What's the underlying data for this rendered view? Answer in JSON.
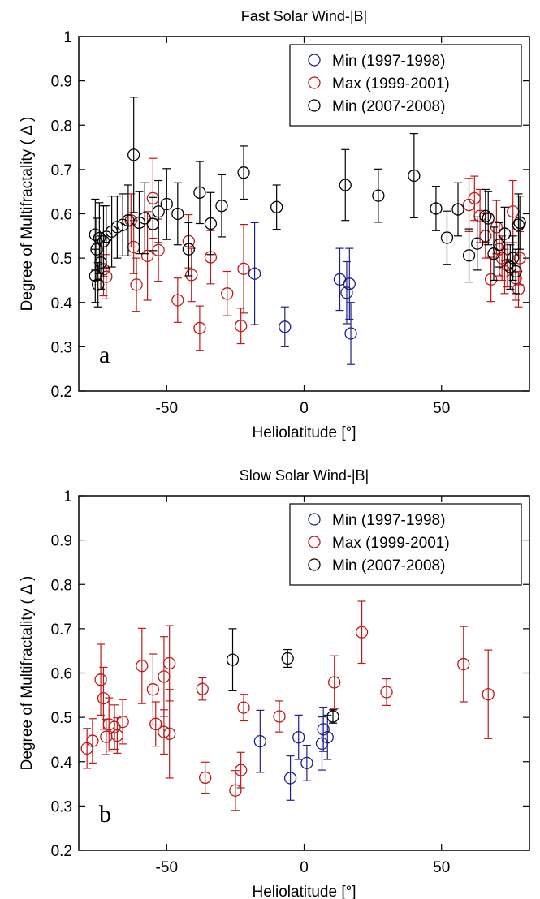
{
  "chart_data": [
    {
      "type": "scatter",
      "title": "Fast Solar Wind-|B|",
      "xlabel": "Heliolatitude [°]",
      "ylabel": "Degree of Multifractality ( Δ )",
      "panel_label": "a",
      "xlim": [
        -82,
        82
      ],
      "ylim": [
        0.2,
        1.0
      ],
      "xticks": [
        -50,
        0,
        50
      ],
      "xtick_labels": [
        "-50",
        "0",
        "50"
      ],
      "yticks": [
        0.2,
        0.3,
        0.4,
        0.5,
        0.6,
        0.7,
        0.8,
        0.9,
        1.0
      ],
      "ytick_labels": [
        "0.2",
        "0.3",
        "0.4",
        "0.5",
        "0.6",
        "0.7",
        "0.8",
        "0.9",
        "1"
      ],
      "grid": false,
      "legend_position": "top-right",
      "series": [
        {
          "name": "Min (1997-1998)",
          "color": "#1f1f8c",
          "points": [
            {
              "x": -18,
              "y": 0.465,
              "err": 0.115
            },
            {
              "x": -7,
              "y": 0.345,
              "err": 0.045
            },
            {
              "x": 13,
              "y": 0.452,
              "err": 0.07
            },
            {
              "x": 15.5,
              "y": 0.422,
              "err": 0.07
            },
            {
              "x": 16.5,
              "y": 0.442,
              "err": 0.08
            },
            {
              "x": 17,
              "y": 0.33,
              "err": 0.07
            }
          ]
        },
        {
          "name": "Max (1999-2001)",
          "color": "#c01818",
          "points": [
            {
              "x": -73,
              "y": 0.475,
              "err": 0.06
            },
            {
              "x": -72,
              "y": 0.458,
              "err": 0.05
            },
            {
              "x": -63,
              "y": 0.585,
              "err": 0.06
            },
            {
              "x": -62,
              "y": 0.525,
              "err": 0.06
            },
            {
              "x": -61,
              "y": 0.44,
              "err": 0.06
            },
            {
              "x": -57,
              "y": 0.505,
              "err": 0.1
            },
            {
              "x": -55,
              "y": 0.635,
              "err": 0.09
            },
            {
              "x": -53,
              "y": 0.518,
              "err": 0.07
            },
            {
              "x": -46,
              "y": 0.405,
              "err": 0.05
            },
            {
              "x": -42,
              "y": 0.538,
              "err": 0.06
            },
            {
              "x": -41,
              "y": 0.462,
              "err": 0.06
            },
            {
              "x": -38,
              "y": 0.342,
              "err": 0.05
            },
            {
              "x": -34,
              "y": 0.502,
              "err": 0.06
            },
            {
              "x": -28,
              "y": 0.42,
              "err": 0.05
            },
            {
              "x": -23,
              "y": 0.347,
              "err": 0.04
            },
            {
              "x": -22,
              "y": 0.476,
              "err": 0.1
            },
            {
              "x": 60,
              "y": 0.62,
              "err": 0.06
            },
            {
              "x": 62,
              "y": 0.635,
              "err": 0.05
            },
            {
              "x": 64,
              "y": 0.595,
              "err": 0.06
            },
            {
              "x": 66,
              "y": 0.55,
              "err": 0.05
            },
            {
              "x": 68,
              "y": 0.452,
              "err": 0.05
            },
            {
              "x": 70,
              "y": 0.57,
              "err": 0.06
            },
            {
              "x": 71,
              "y": 0.52,
              "err": 0.06
            },
            {
              "x": 72,
              "y": 0.5,
              "err": 0.05
            },
            {
              "x": 73,
              "y": 0.47,
              "err": 0.05
            },
            {
              "x": 74,
              "y": 0.485,
              "err": 0.05
            },
            {
              "x": 76,
              "y": 0.605,
              "err": 0.07
            },
            {
              "x": 77,
              "y": 0.455,
              "err": 0.05
            },
            {
              "x": 78,
              "y": 0.43,
              "err": 0.04
            },
            {
              "x": 78.5,
              "y": 0.5,
              "err": 0.06
            }
          ]
        },
        {
          "name": "Min (2007-2008)",
          "color": "#000000",
          "points": [
            {
              "x": -76,
              "y": 0.553,
              "err": 0.08
            },
            {
              "x": -76,
              "y": 0.46,
              "err": 0.06
            },
            {
              "x": -75.5,
              "y": 0.52,
              "err": 0.07
            },
            {
              "x": -75,
              "y": 0.44,
              "err": 0.05
            },
            {
              "x": -74.5,
              "y": 0.545,
              "err": 0.08
            },
            {
              "x": -74,
              "y": 0.49,
              "err": 0.06
            },
            {
              "x": -73,
              "y": 0.538,
              "err": 0.08
            },
            {
              "x": -72,
              "y": 0.548,
              "err": 0.07
            },
            {
              "x": -70,
              "y": 0.56,
              "err": 0.08
            },
            {
              "x": -68,
              "y": 0.57,
              "err": 0.07
            },
            {
              "x": -66,
              "y": 0.575,
              "err": 0.07
            },
            {
              "x": -64,
              "y": 0.585,
              "err": 0.08
            },
            {
              "x": -62,
              "y": 0.733,
              "err": 0.13
            },
            {
              "x": -60,
              "y": 0.58,
              "err": 0.07
            },
            {
              "x": -58,
              "y": 0.59,
              "err": 0.08
            },
            {
              "x": -55,
              "y": 0.577,
              "err": 0.06
            },
            {
              "x": -53,
              "y": 0.605,
              "err": 0.07
            },
            {
              "x": -50,
              "y": 0.622,
              "err": 0.08
            },
            {
              "x": -46,
              "y": 0.6,
              "err": 0.07
            },
            {
              "x": -42,
              "y": 0.52,
              "err": 0.06
            },
            {
              "x": -38,
              "y": 0.648,
              "err": 0.07
            },
            {
              "x": -34,
              "y": 0.578,
              "err": 0.07
            },
            {
              "x": -30,
              "y": 0.618,
              "err": 0.07
            },
            {
              "x": -22,
              "y": 0.693,
              "err": 0.06
            },
            {
              "x": -10,
              "y": 0.615,
              "err": 0.05
            },
            {
              "x": 15,
              "y": 0.665,
              "err": 0.08
            },
            {
              "x": 27,
              "y": 0.641,
              "err": 0.06
            },
            {
              "x": 40,
              "y": 0.686,
              "err": 0.095
            },
            {
              "x": 48,
              "y": 0.612,
              "err": 0.05
            },
            {
              "x": 52,
              "y": 0.546,
              "err": 0.06
            },
            {
              "x": 56,
              "y": 0.61,
              "err": 0.06
            },
            {
              "x": 60,
              "y": 0.506,
              "err": 0.06
            },
            {
              "x": 63,
              "y": 0.533,
              "err": 0.06
            },
            {
              "x": 66,
              "y": 0.595,
              "err": 0.06
            },
            {
              "x": 67,
              "y": 0.59,
              "err": 0.06
            },
            {
              "x": 69,
              "y": 0.51,
              "err": 0.06
            },
            {
              "x": 71,
              "y": 0.53,
              "err": 0.05
            },
            {
              "x": 73,
              "y": 0.555,
              "err": 0.06
            },
            {
              "x": 75,
              "y": 0.48,
              "err": 0.05
            },
            {
              "x": 76,
              "y": 0.5,
              "err": 0.05
            },
            {
              "x": 77,
              "y": 0.47,
              "err": 0.05
            },
            {
              "x": 78,
              "y": 0.575,
              "err": 0.07
            },
            {
              "x": 78.5,
              "y": 0.58,
              "err": 0.06
            }
          ]
        }
      ]
    },
    {
      "type": "scatter",
      "title": "Slow Solar Wind-|B|",
      "xlabel": "Heliolatitude [°]",
      "ylabel": "Degree of Multifractality ( Δ )",
      "panel_label": "b",
      "xlim": [
        -82,
        82
      ],
      "ylim": [
        0.2,
        1.0
      ],
      "xticks": [
        -50,
        0,
        50
      ],
      "xtick_labels": [
        "-50",
        "0",
        "50"
      ],
      "yticks": [
        0.2,
        0.3,
        0.4,
        0.5,
        0.6,
        0.7,
        0.8,
        0.9,
        1.0
      ],
      "ytick_labels": [
        "0.2",
        "0.3",
        "0.4",
        "0.5",
        "0.6",
        "0.7",
        "0.8",
        "0.9",
        "1"
      ],
      "grid": false,
      "legend_position": "top-right",
      "series": [
        {
          "name": "Min (1997-1998)",
          "color": "#1f1f8c",
          "points": [
            {
              "x": -16,
              "y": 0.446,
              "err": 0.07
            },
            {
              "x": -5,
              "y": 0.363,
              "err": 0.05
            },
            {
              "x": -2,
              "y": 0.455,
              "err": 0.05
            },
            {
              "x": 1,
              "y": 0.397,
              "err": 0.04
            },
            {
              "x": 6.5,
              "y": 0.441,
              "err": 0.06
            },
            {
              "x": 7,
              "y": 0.473,
              "err": 0.05
            },
            {
              "x": 8.5,
              "y": 0.455,
              "err": 0.05
            }
          ]
        },
        {
          "name": "Max (1999-2001)",
          "color": "#c01818",
          "points": [
            {
              "x": -79,
              "y": 0.43,
              "err": 0.045
            },
            {
              "x": -77,
              "y": 0.447,
              "err": 0.05
            },
            {
              "x": -74,
              "y": 0.585,
              "err": 0.08
            },
            {
              "x": -73,
              "y": 0.543,
              "err": 0.07
            },
            {
              "x": -72,
              "y": 0.456,
              "err": 0.04
            },
            {
              "x": -71,
              "y": 0.484,
              "err": 0.06
            },
            {
              "x": -69,
              "y": 0.478,
              "err": 0.05
            },
            {
              "x": -68,
              "y": 0.459,
              "err": 0.04
            },
            {
              "x": -66,
              "y": 0.49,
              "err": 0.05
            },
            {
              "x": -59,
              "y": 0.616,
              "err": 0.085
            },
            {
              "x": -55,
              "y": 0.563,
              "err": 0.08
            },
            {
              "x": -54,
              "y": 0.485,
              "err": 0.05
            },
            {
              "x": -51,
              "y": 0.592,
              "err": 0.09
            },
            {
              "x": -51,
              "y": 0.467,
              "err": 0.05
            },
            {
              "x": -49,
              "y": 0.622,
              "err": 0.085
            },
            {
              "x": -49,
              "y": 0.463,
              "err": 0.1
            },
            {
              "x": -37,
              "y": 0.564,
              "err": 0.025
            },
            {
              "x": -36,
              "y": 0.364,
              "err": 0.035
            },
            {
              "x": -25,
              "y": 0.335,
              "err": 0.045
            },
            {
              "x": -23,
              "y": 0.381,
              "err": 0.04
            },
            {
              "x": -22,
              "y": 0.522,
              "err": 0.03
            },
            {
              "x": -9,
              "y": 0.502,
              "err": 0.035
            },
            {
              "x": 11,
              "y": 0.579,
              "err": 0.06
            },
            {
              "x": 21,
              "y": 0.692,
              "err": 0.07
            },
            {
              "x": 30,
              "y": 0.557,
              "err": 0.03
            },
            {
              "x": 58,
              "y": 0.62,
              "err": 0.085
            },
            {
              "x": 67,
              "y": 0.552,
              "err": 0.1
            }
          ]
        },
        {
          "name": "Min (2007-2008)",
          "color": "#000000",
          "points": [
            {
              "x": -26,
              "y": 0.63,
              "err": 0.07
            },
            {
              "x": -6,
              "y": 0.633,
              "err": 0.02
            },
            {
              "x": 10.5,
              "y": 0.502,
              "err": 0.015
            }
          ]
        }
      ]
    }
  ]
}
